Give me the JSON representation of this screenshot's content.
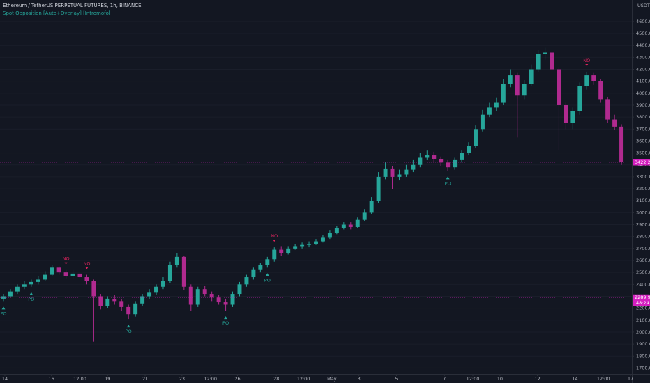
{
  "chart_data": {
    "type": "candlestick",
    "title": "Ethereum / TetherUS PERPETUAL FUTURES, 1h, BINANCE",
    "subtitle": "Spot Opposition [Auto+Overlay] [Intromofo]",
    "y_unit": "USDT",
    "up_color": "#26a69a",
    "down_color": "#b02a8f",
    "background": "#131722",
    "xlim": [
      0,
      91
    ],
    "xticks": [
      {
        "value": 0.7,
        "label": "14"
      },
      {
        "value": 7.4,
        "label": "16"
      },
      {
        "value": 11.5,
        "label": "12:00"
      },
      {
        "value": 15.5,
        "label": "19"
      },
      {
        "value": 20.9,
        "label": "21"
      },
      {
        "value": 26.2,
        "label": "23"
      },
      {
        "value": 30.3,
        "label": "12:00"
      },
      {
        "value": 34.2,
        "label": "26"
      },
      {
        "value": 39.8,
        "label": "28"
      },
      {
        "value": 43.7,
        "label": "12:00"
      },
      {
        "value": 47.8,
        "label": "May"
      },
      {
        "value": 51.7,
        "label": "3"
      },
      {
        "value": 57.1,
        "label": "5"
      },
      {
        "value": 64,
        "label": "7"
      },
      {
        "value": 68.1,
        "label": "12:00"
      },
      {
        "value": 72,
        "label": "10"
      },
      {
        "value": 77.4,
        "label": "12"
      },
      {
        "value": 82.8,
        "label": "14"
      },
      {
        "value": 86.9,
        "label": "12:00"
      },
      {
        "value": 90.8,
        "label": "17"
      }
    ],
    "ylim": [
      1650,
      4780
    ],
    "yticks": [
      {
        "value": 1700,
        "label": "1700.00"
      },
      {
        "value": 1800,
        "label": "1800.00"
      },
      {
        "value": 1900,
        "label": "1900.00"
      },
      {
        "value": 2000,
        "label": "2000.00"
      },
      {
        "value": 2100,
        "label": "2100.00"
      },
      {
        "value": 2200,
        "label": "2200.00"
      },
      {
        "value": 2300,
        "label": "2300.00"
      },
      {
        "value": 2400,
        "label": "2400.00"
      },
      {
        "value": 2500,
        "label": "2500.00"
      },
      {
        "value": 2600,
        "label": "2600.00"
      },
      {
        "value": 2700,
        "label": "2700.00"
      },
      {
        "value": 2800,
        "label": "2800.00"
      },
      {
        "value": 2900,
        "label": "2900.00"
      },
      {
        "value": 3000,
        "label": "3000.00"
      },
      {
        "value": 3100,
        "label": "3100.00"
      },
      {
        "value": 3200,
        "label": "3200.00"
      },
      {
        "value": 3300,
        "label": "3300.00"
      },
      {
        "value": 3400,
        "label": "3400.00"
      },
      {
        "value": 3500,
        "label": "3500.00"
      },
      {
        "value": 3600,
        "label": "3600.00"
      },
      {
        "value": 3700,
        "label": "3700.00"
      },
      {
        "value": 3800,
        "label": "3800.00"
      },
      {
        "value": 3900,
        "label": "3900.00"
      },
      {
        "value": 4000,
        "label": "4000.00"
      },
      {
        "value": 4100,
        "label": "4100.00"
      },
      {
        "value": 4200,
        "label": "4200.00"
      },
      {
        "value": 4300,
        "label": "4300.00"
      },
      {
        "value": 4400,
        "label": "4400.00"
      },
      {
        "value": 4500,
        "label": "4500.00"
      },
      {
        "value": 4600,
        "label": "4600.00"
      }
    ],
    "open": [
      2280,
      2300,
      2340,
      2380,
      2400,
      2420,
      2440,
      2480,
      2540,
      2500,
      2470,
      2490,
      2460,
      2430,
      2300,
      2220,
      2280,
      2260,
      2210,
      2150,
      2240,
      2300,
      2330,
      2380,
      2430,
      2560,
      2630,
      2380,
      2230,
      2360,
      2320,
      2290,
      2250,
      2230,
      2320,
      2400,
      2460,
      2520,
      2560,
      2610,
      2690,
      2660,
      2700,
      2720,
      2730,
      2740,
      2760,
      2790,
      2830,
      2870,
      2900,
      2880,
      2940,
      3000,
      3100,
      3300,
      3370,
      3300,
      3320,
      3360,
      3400,
      3460,
      3480,
      3450,
      3420,
      3380,
      3440,
      3500,
      3560,
      3700,
      3820,
      3880,
      3920,
      4080,
      4150,
      3980,
      4080,
      4200,
      4330,
      4340,
      4200,
      3900,
      3750,
      3850,
      4060,
      4150,
      4100,
      3950,
      3780,
      3720
    ],
    "high": [
      2320,
      2360,
      2400,
      2430,
      2440,
      2470,
      2510,
      2560,
      2550,
      2520,
      2520,
      2510,
      2480,
      2440,
      2320,
      2300,
      2310,
      2280,
      2230,
      2260,
      2320,
      2360,
      2400,
      2460,
      2590,
      2660,
      2640,
      2400,
      2380,
      2390,
      2340,
      2310,
      2280,
      2340,
      2420,
      2480,
      2540,
      2580,
      2630,
      2710,
      2720,
      2720,
      2740,
      2750,
      2760,
      2780,
      2810,
      2850,
      2890,
      2920,
      2920,
      2960,
      3030,
      3130,
      3340,
      3420,
      3390,
      3360,
      3400,
      3440,
      3500,
      3520,
      3510,
      3470,
      3440,
      3460,
      3520,
      3590,
      3730,
      3860,
      3920,
      3960,
      4120,
      4200,
      4170,
      4110,
      4240,
      4360,
      4380,
      4350,
      4220,
      3920,
      3880,
      4090,
      4180,
      4170,
      4120,
      3970,
      3820,
      3740
    ],
    "low": [
      2260,
      2290,
      2320,
      2360,
      2380,
      2400,
      2430,
      2470,
      2480,
      2450,
      2450,
      2440,
      2400,
      1920,
      2190,
      2200,
      2230,
      2180,
      2110,
      2130,
      2220,
      2280,
      2310,
      2360,
      2410,
      2540,
      2350,
      2180,
      2210,
      2300,
      2260,
      2230,
      2180,
      2210,
      2300,
      2380,
      2440,
      2500,
      2540,
      2590,
      2640,
      2650,
      2690,
      2700,
      2710,
      2730,
      2750,
      2780,
      2820,
      2860,
      2860,
      2870,
      2930,
      2990,
      3080,
      3280,
      3200,
      3270,
      3300,
      3340,
      3380,
      3440,
      3420,
      3390,
      3350,
      3360,
      3420,
      3480,
      3540,
      3680,
      3800,
      3850,
      3900,
      4050,
      3630,
      3950,
      4060,
      4180,
      4280,
      4160,
      3520,
      3700,
      3700,
      3820,
      4030,
      4070,
      3920,
      3750,
      3690,
      3400
    ],
    "close": [
      2300,
      2340,
      2380,
      2400,
      2420,
      2440,
      2480,
      2540,
      2500,
      2470,
      2490,
      2460,
      2430,
      2300,
      2220,
      2280,
      2260,
      2210,
      2150,
      2240,
      2300,
      2330,
      2380,
      2430,
      2560,
      2630,
      2380,
      2230,
      2360,
      2320,
      2290,
      2250,
      2230,
      2320,
      2400,
      2460,
      2520,
      2560,
      2610,
      2690,
      2660,
      2700,
      2720,
      2730,
      2740,
      2760,
      2790,
      2830,
      2870,
      2900,
      2880,
      2940,
      3000,
      3100,
      3300,
      3370,
      3300,
      3320,
      3360,
      3400,
      3460,
      3480,
      3450,
      3420,
      3380,
      3440,
      3500,
      3560,
      3700,
      3820,
      3880,
      3920,
      4080,
      4150,
      3980,
      4080,
      4200,
      4330,
      4340,
      4200,
      3900,
      3750,
      3850,
      4060,
      4150,
      4100,
      3950,
      3780,
      3720,
      3422.22
    ],
    "signals": [
      {
        "text": "PO",
        "x": 0
      },
      {
        "text": "PO",
        "x": 4
      },
      {
        "text": "PO",
        "x": 18
      },
      {
        "text": "PO",
        "x": 32
      },
      {
        "text": "PO",
        "x": 38
      },
      {
        "text": "PO",
        "x": 64
      },
      {
        "text": "NO",
        "x": 9
      },
      {
        "text": "NO",
        "x": 12
      },
      {
        "text": "NO",
        "x": 39
      },
      {
        "text": "NO",
        "x": 84
      }
    ],
    "price_labels": [
      {
        "value": 3422.22,
        "label": "3422.22"
      },
      {
        "value": 2289.9,
        "label": "2289.90",
        "sublabel": "48:24"
      }
    ]
  }
}
